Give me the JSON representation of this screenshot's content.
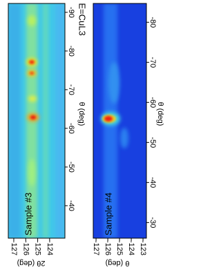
{
  "chart_data": [
    {
      "type": "heatmap",
      "annotation": "Sample #3",
      "label": "E=CuL3",
      "xlabel": "2θ (deg)",
      "ylabel": "θ (deg)",
      "xlim": [
        -127.46,
        -122.72
      ],
      "xticks": [
        -127,
        -126,
        -125,
        -124
      ],
      "ylim": [
        -92.3,
        -31.6
      ],
      "yticks": [
        -90,
        -80,
        -70,
        -60,
        -50,
        -40
      ]
    },
    {
      "type": "heatmap",
      "annotation": "Sample #4",
      "xlabel": "θ (deg)",
      "ylabel": "θ (deg)",
      "xlim": [
        -127.24,
        -122.71
      ],
      "xticks": [
        -127,
        -126,
        -125,
        -124,
        -123
      ],
      "ylim": [
        -84.7,
        -26.1
      ],
      "yticks": [
        -80,
        -70,
        -60,
        -50,
        -40,
        -30
      ]
    }
  ]
}
